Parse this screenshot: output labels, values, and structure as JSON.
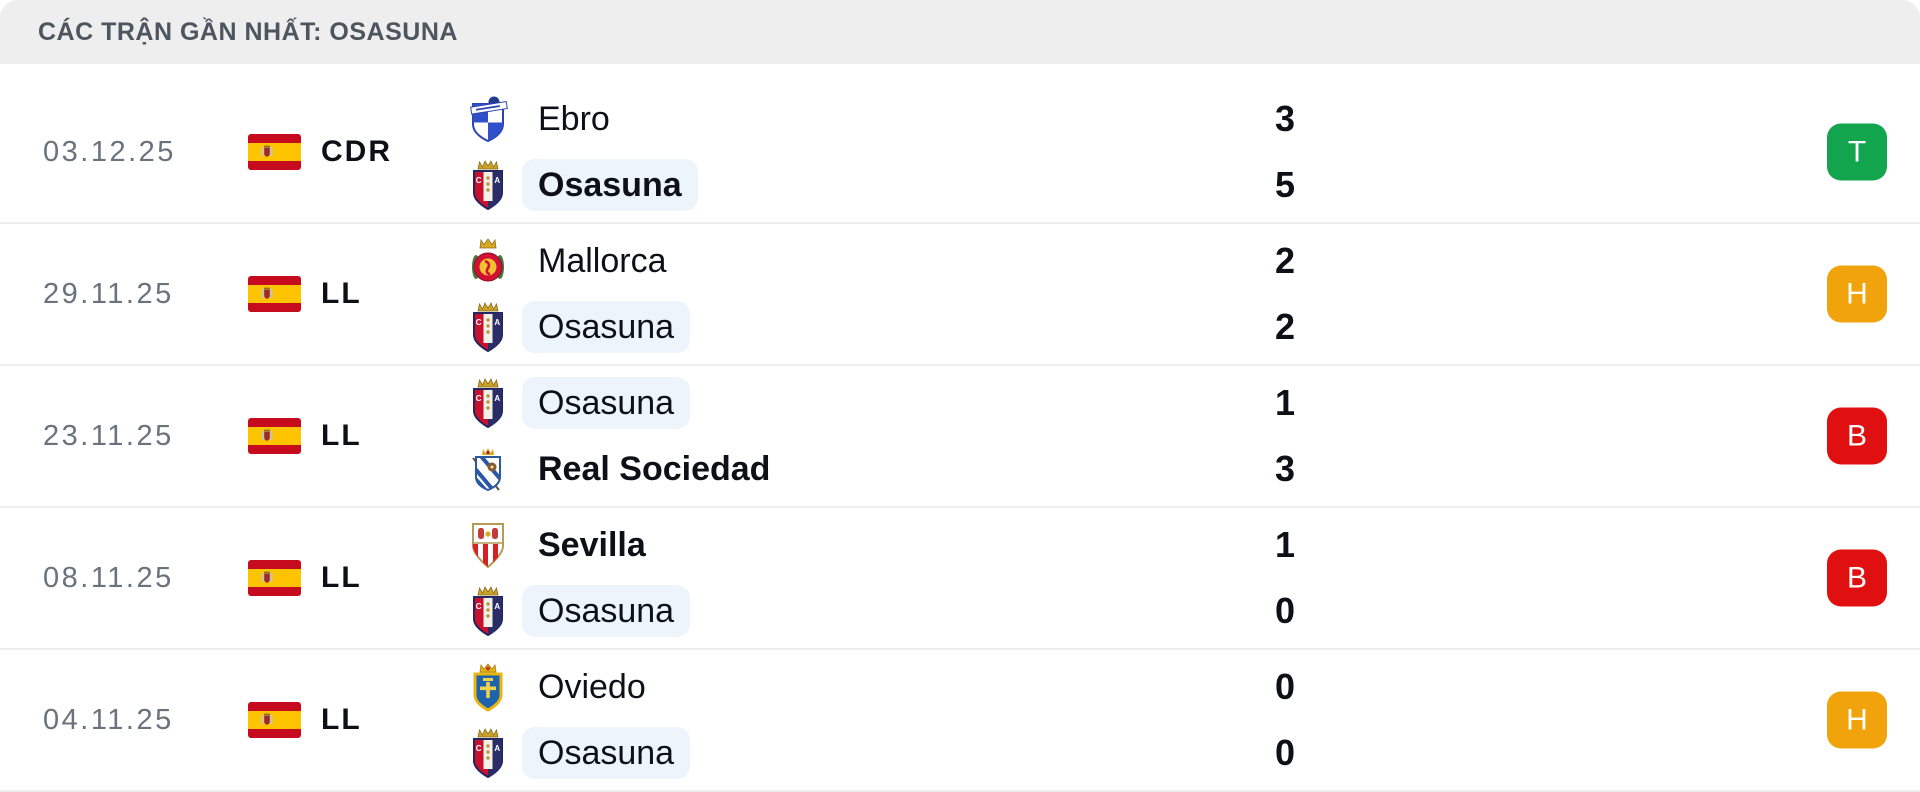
{
  "header": {
    "title": "CÁC TRẬN GẦN NHẤT: OSASUNA"
  },
  "colors": {
    "header_bg": "#eeeeee",
    "header_text": "#4d565e",
    "date_text": "#68737d",
    "primary_text": "#0d1117",
    "row_divider": "#ecedef",
    "highlight_pill_bg": "#edf4fc",
    "result_win": "#12a54e",
    "result_draw": "#f0a30b",
    "result_loss": "#e01010",
    "badge_text": "#ffffff"
  },
  "matches": [
    {
      "date": "03.12.25",
      "competition": "CDR",
      "flag": "spain-flag",
      "teams": [
        {
          "name": "Ebro",
          "logo": "ebro-logo",
          "score": "3",
          "bold": false,
          "highlight": false
        },
        {
          "name": "Osasuna",
          "logo": "osasuna-logo",
          "score": "5",
          "bold": true,
          "highlight": true
        }
      ],
      "result": {
        "letter": "T",
        "type": "win"
      }
    },
    {
      "date": "29.11.25",
      "competition": "LL",
      "flag": "spain-flag",
      "teams": [
        {
          "name": "Mallorca",
          "logo": "mallorca-logo",
          "score": "2",
          "bold": false,
          "highlight": false
        },
        {
          "name": "Osasuna",
          "logo": "osasuna-logo",
          "score": "2",
          "bold": false,
          "highlight": true
        }
      ],
      "result": {
        "letter": "H",
        "type": "draw"
      }
    },
    {
      "date": "23.11.25",
      "competition": "LL",
      "flag": "spain-flag",
      "teams": [
        {
          "name": "Osasuna",
          "logo": "osasuna-logo",
          "score": "1",
          "bold": false,
          "highlight": true
        },
        {
          "name": "Real Sociedad",
          "logo": "real-sociedad-logo",
          "score": "3",
          "bold": true,
          "highlight": false
        }
      ],
      "result": {
        "letter": "B",
        "type": "loss"
      }
    },
    {
      "date": "08.11.25",
      "competition": "LL",
      "flag": "spain-flag",
      "teams": [
        {
          "name": "Sevilla",
          "logo": "sevilla-logo",
          "score": "1",
          "bold": true,
          "highlight": false
        },
        {
          "name": "Osasuna",
          "logo": "osasuna-logo",
          "score": "0",
          "bold": false,
          "highlight": true
        }
      ],
      "result": {
        "letter": "B",
        "type": "loss"
      }
    },
    {
      "date": "04.11.25",
      "competition": "LL",
      "flag": "spain-flag",
      "teams": [
        {
          "name": "Oviedo",
          "logo": "oviedo-logo",
          "score": "0",
          "bold": false,
          "highlight": false
        },
        {
          "name": "Osasuna",
          "logo": "osasuna-logo",
          "score": "0",
          "bold": false,
          "highlight": true
        }
      ],
      "result": {
        "letter": "H",
        "type": "draw"
      }
    }
  ]
}
